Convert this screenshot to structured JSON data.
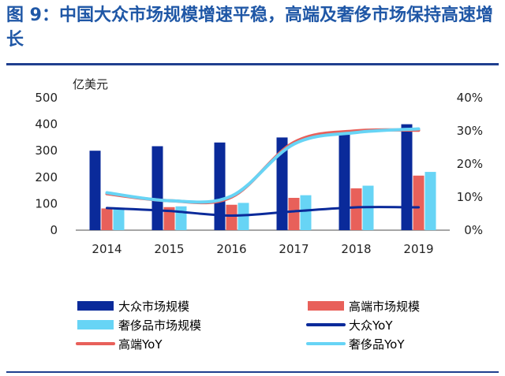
{
  "figure": {
    "title": "图 9：中国大众市场规模增速平稳，高端及奢侈市场保持高速增长"
  },
  "chart_data": {
    "type": "bar",
    "categories": [
      "2014",
      "2015",
      "2016",
      "2017",
      "2018",
      "2019"
    ],
    "y_left": {
      "label": "亿美元",
      "range": [
        0,
        500
      ],
      "ticks": [
        "0",
        "100",
        "200",
        "300",
        "400",
        "500"
      ]
    },
    "y_right": {
      "range": [
        0,
        40
      ],
      "ticks": [
        "0%",
        "10%",
        "20%",
        "30%",
        "40%"
      ]
    },
    "series": [
      {
        "name": "大众市场规模",
        "kind": "bar",
        "axis": "left",
        "color": "#0a2a9a",
        "values": [
          300,
          317,
          331,
          350,
          374,
          400
        ]
      },
      {
        "name": "高端市场规模",
        "kind": "bar",
        "axis": "left",
        "color": "#e8605a",
        "values": [
          82,
          87,
          96,
          122,
          158,
          206
        ]
      },
      {
        "name": "奢侈品市场规模",
        "kind": "bar",
        "axis": "left",
        "color": "#67d4f5",
        "values": [
          83,
          90,
          103,
          132,
          168,
          220
        ]
      },
      {
        "name": "大众YoY",
        "kind": "line",
        "axis": "right",
        "color": "#0a2a9a",
        "values": [
          6.7,
          5.8,
          4.4,
          5.7,
          6.9,
          6.9
        ]
      },
      {
        "name": "高端YoY",
        "kind": "line",
        "axis": "right",
        "color": "#e8605a",
        "values": [
          11.0,
          8.9,
          10.0,
          26.5,
          30.0,
          30.2
        ]
      },
      {
        "name": "奢侈品YoY",
        "kind": "line",
        "axis": "right",
        "color": "#67d4f5",
        "values": [
          11.3,
          8.9,
          10.3,
          26.0,
          29.5,
          30.6
        ]
      }
    ],
    "legend": {
      "placement": "bottom",
      "columns": 2
    }
  }
}
